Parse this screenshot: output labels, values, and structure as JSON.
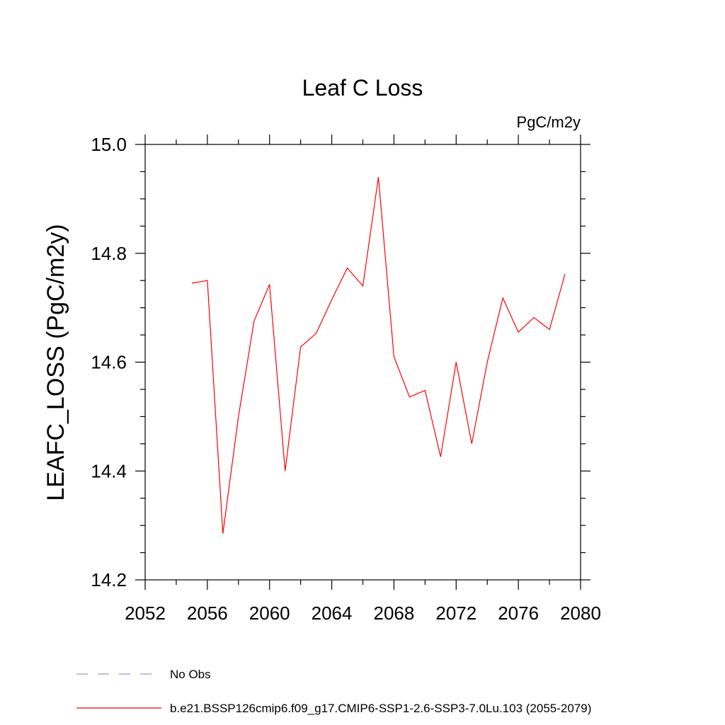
{
  "chart_data": {
    "type": "line",
    "title": "Leaf C Loss",
    "units": "PgC/m2y",
    "ylabel": "LEAFC_LOSS  (PgC/m2y)",
    "xlabel": "",
    "xlim": [
      2052,
      2080
    ],
    "ylim": [
      14.2,
      15.0
    ],
    "x_ticks": [
      2052,
      2056,
      2060,
      2064,
      2068,
      2072,
      2076,
      2080
    ],
    "x_tick_labels": [
      "2052",
      "2056",
      "2060",
      "2064",
      "2068",
      "2072",
      "2076",
      "2080"
    ],
    "y_ticks": [
      14.2,
      14.4,
      14.6,
      14.8,
      15.0
    ],
    "y_tick_labels": [
      "14.2",
      "14.4",
      "14.6",
      "14.8",
      "15.0"
    ],
    "y_minor_step": 0.05,
    "x_minor_step": 2,
    "grid": false,
    "series": [
      {
        "name": "b.e21.BSSP126cmip6.f09_g17.CMIP6-SSP1-2.6-SSP3-7.0Lu.103 (2055-2079)",
        "color": "#ff0000",
        "dash": "solid",
        "x": [
          2055,
          2056,
          2057,
          2058,
          2059,
          2060,
          2061,
          2062,
          2063,
          2064,
          2065,
          2066,
          2067,
          2068,
          2069,
          2070,
          2071,
          2072,
          2073,
          2074,
          2075,
          2076,
          2077,
          2078,
          2079
        ],
        "values": [
          14.745,
          14.75,
          14.285,
          14.5,
          14.675,
          14.743,
          14.4,
          14.628,
          14.653,
          14.715,
          14.773,
          14.74,
          14.94,
          14.61,
          14.536,
          14.548,
          14.426,
          14.6,
          14.45,
          14.6,
          14.718,
          14.655,
          14.682,
          14.66,
          14.762
        ]
      }
    ],
    "legend": {
      "placement": "bottom-left",
      "entries": [
        {
          "label": "No Obs",
          "color": "#9a94c8",
          "dash": "dashed"
        },
        {
          "label": "b.e21.BSSP126cmip6.f09_g17.CMIP6-SSP1-2.6-SSP3-7.0Lu.103 (2055-2079)",
          "color": "#ff0000",
          "dash": "solid"
        }
      ]
    }
  }
}
